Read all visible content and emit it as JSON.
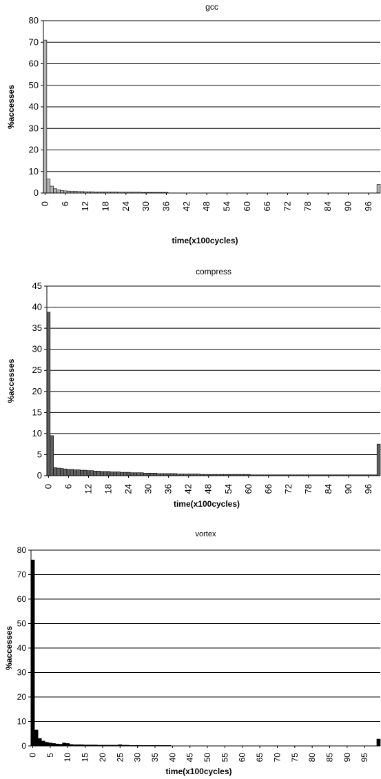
{
  "chart_data": [
    {
      "type": "bar",
      "title": "gcc",
      "xlabel": "time(x100cycles)",
      "ylabel": "%accesses",
      "ylim": [
        0,
        80
      ],
      "yticks": [
        0,
        10,
        20,
        30,
        40,
        50,
        60,
        70,
        80
      ],
      "xlim": [
        0,
        99
      ],
      "xticks": [
        0,
        6,
        12,
        18,
        24,
        30,
        36,
        42,
        48,
        54,
        60,
        66,
        72,
        78,
        84,
        90,
        96
      ],
      "grid": true,
      "bar_color": "#b3b3b3",
      "values": [
        71,
        6.5,
        3.2,
        2.0,
        1.5,
        1.2,
        1.0,
        0.9,
        0.8,
        0.8,
        0.7,
        0.7,
        0.6,
        0.6,
        0.6,
        0.5,
        0.5,
        0.5,
        0.5,
        0.5,
        0.5,
        0.5,
        0.4,
        0.4,
        0.4,
        0.4,
        0.4,
        0.4,
        0.4,
        0.3,
        0.3,
        0.3,
        0.3,
        0.3,
        0.3,
        0.3,
        0.3,
        0,
        0,
        0,
        0,
        0,
        0,
        0,
        0,
        0,
        0,
        0,
        0,
        0,
        0,
        0,
        0,
        0,
        0,
        0,
        0,
        0,
        0,
        0,
        0,
        0,
        0,
        0,
        0,
        0,
        0,
        0,
        0,
        0,
        0,
        0,
        0,
        0,
        0,
        0,
        0,
        0,
        0,
        0,
        0,
        0,
        0,
        0,
        0,
        0,
        0,
        0,
        0,
        0,
        0,
        0,
        0,
        0,
        0,
        0,
        0,
        0,
        0,
        4.0
      ]
    },
    {
      "type": "bar",
      "title": "compress",
      "xlabel": "time(x100cycles)",
      "ylabel": "%accesses",
      "ylim": [
        0,
        45
      ],
      "yticks": [
        0,
        5,
        10,
        15,
        20,
        25,
        30,
        35,
        40,
        45
      ],
      "xlim": [
        0,
        99
      ],
      "xticks": [
        0,
        6,
        12,
        18,
        24,
        30,
        36,
        42,
        48,
        54,
        60,
        66,
        72,
        78,
        84,
        90,
        96
      ],
      "grid": true,
      "bar_color": "#606060",
      "values": [
        38.8,
        9.5,
        1.9,
        1.8,
        1.7,
        1.6,
        1.5,
        1.5,
        1.4,
        1.4,
        1.3,
        1.3,
        1.2,
        1.2,
        1.1,
        1.1,
        1.0,
        1.0,
        1.0,
        0.9,
        0.9,
        0.9,
        0.8,
        0.8,
        0.8,
        0.7,
        0.7,
        0.7,
        0.7,
        0.6,
        0.6,
        0.6,
        0.6,
        0.5,
        0.5,
        0.5,
        0.5,
        0.5,
        0.5,
        0.4,
        0.4,
        0.4,
        0.4,
        0.4,
        0.4,
        0.4,
        0.3,
        0.3,
        0.3,
        0.3,
        0.3,
        0.3,
        0.3,
        0.3,
        0.3,
        0.3,
        0.3,
        0.3,
        0.3,
        0.3,
        0.3,
        0.2,
        0.2,
        0.2,
        0.2,
        0.2,
        0.2,
        0.2,
        0.2,
        0.2,
        0.2,
        0.2,
        0.2,
        0.2,
        0.2,
        0.2,
        0.2,
        0.2,
        0.2,
        0.2,
        0.2,
        0.2,
        0.2,
        0.2,
        0.2,
        0.2,
        0.2,
        0.2,
        0.2,
        0.2,
        0.2,
        0.2,
        0.2,
        0.2,
        0.2,
        0.2,
        0.2,
        0.2,
        0.2,
        7.5
      ]
    },
    {
      "type": "bar",
      "title": "vortex",
      "xlabel": "time(x100cycles)",
      "ylabel": "%accesses",
      "ylim": [
        0,
        80
      ],
      "yticks": [
        0,
        10,
        20,
        30,
        40,
        50,
        60,
        70,
        80
      ],
      "xlim": [
        0,
        99
      ],
      "xticks": [
        0,
        5,
        10,
        15,
        20,
        25,
        30,
        35,
        40,
        45,
        50,
        55,
        60,
        65,
        70,
        75,
        80,
        85,
        90,
        95
      ],
      "grid": true,
      "bar_color": "#000000",
      "values": [
        76,
        6.5,
        3.0,
        2.0,
        1.5,
        1.2,
        1.0,
        0.8,
        0.7,
        1.2,
        1.0,
        0.6,
        0.5,
        0.5,
        0.5,
        0.4,
        0.4,
        0.4,
        0.4,
        0.3,
        0.3,
        0.3,
        0.3,
        0.3,
        0.3,
        0.5,
        0.3,
        0.3,
        0.2,
        0.2,
        0.2,
        0.2,
        0.2,
        0.2,
        0.2,
        0.2,
        0.2,
        0.2,
        0.2,
        0.2,
        0,
        0,
        0,
        0,
        0,
        0,
        0,
        0,
        0,
        0,
        0,
        0,
        0,
        0,
        0,
        0,
        0,
        0,
        0,
        0,
        0,
        0,
        0,
        0,
        0,
        0,
        0,
        0,
        0,
        0,
        0,
        0,
        0,
        0,
        0,
        0,
        0,
        0,
        0,
        0,
        0,
        0,
        0,
        0,
        0,
        0,
        0,
        0,
        0,
        0,
        0,
        0,
        0,
        0,
        0,
        0,
        0,
        0,
        0,
        2.8
      ]
    }
  ]
}
